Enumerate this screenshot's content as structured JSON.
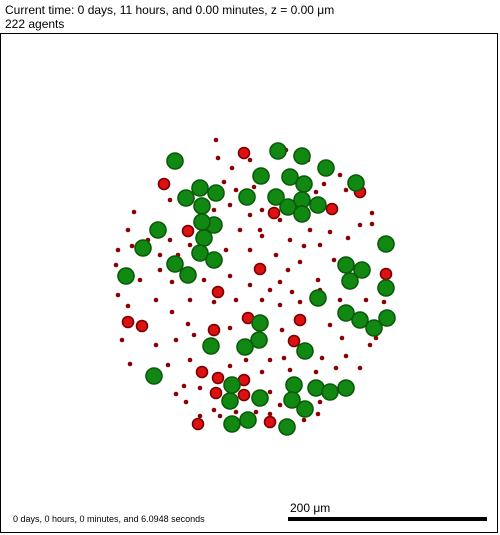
{
  "header": {
    "time_line": "Current time: 0 days, 11 hours, and 0.00 minutes, z = 0.00 μm",
    "agent_count": "222 agents"
  },
  "footer": {
    "elapsed": "0 days, 0 hours, 0 minutes, and 6.0948 seconds",
    "scale_label": "200 μm"
  },
  "colors": {
    "green_fill": "#118811",
    "green_edge": "#0a5a0a",
    "red_fill": "#dd1111",
    "red_edge": "#7a0000",
    "dark_fill": "#8b0000"
  }
}
